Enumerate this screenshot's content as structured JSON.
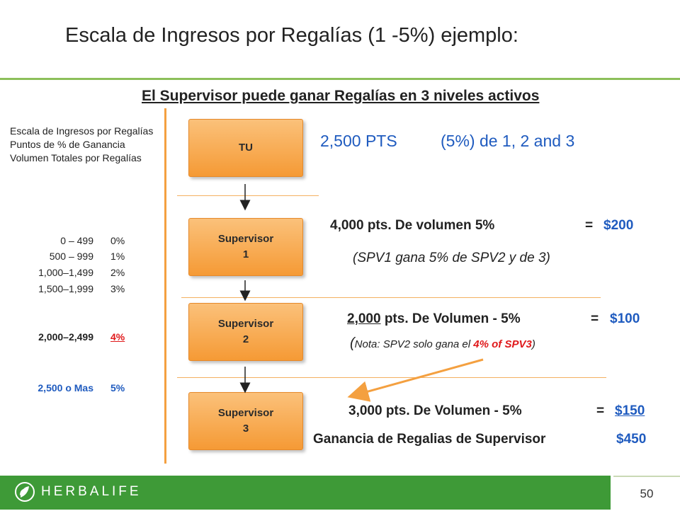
{
  "title": "Escala de Ingresos por Regalías  (1 -5%) ejemplo:",
  "subtitle": "El Supervisor puede ganar Regalías en 3 niveles activos",
  "scale": {
    "description": "Escala de Ingresos por Regalías Puntos de % de Ganancia Volumen Totales por Regalías",
    "tiers": [
      {
        "range": "0 –  499",
        "pct": "0%"
      },
      {
        "range": "500 –  999",
        "pct": "1%"
      },
      {
        "range": "1,000–1,499",
        "pct": "2%"
      },
      {
        "range": "1,500–1,999",
        "pct": "3%"
      },
      {
        "range": "2,000–2,499",
        "pct": "4%"
      },
      {
        "range": "2,500 o Mas",
        "pct": "5%"
      }
    ]
  },
  "levels": [
    {
      "line1": "TU",
      "line2": ""
    },
    {
      "line1": "Supervisor",
      "line2": "1"
    },
    {
      "line1": "Supervisor",
      "line2": "2"
    },
    {
      "line1": "Supervisor",
      "line2": "3"
    }
  ],
  "tu_info": {
    "points": "2,500 PTS",
    "pct_text": "(5%) de 1, 2 and 3"
  },
  "spv1": {
    "volume_text": "4,000 pts. De volumen  5%",
    "eq": "=",
    "amount": "$200",
    "note": "(SPV1 gana 5% de SPV2 y de 3)"
  },
  "spv2": {
    "points_num": "2,000",
    "volume_rest": " pts. De Volumen - 5%",
    "eq": "=",
    "amount": "$100",
    "note_open": "(",
    "note_a": "Nota:  SPV2 solo gana el ",
    "note_b": "4% of SPV3",
    "note_close": ")"
  },
  "spv3": {
    "volume_text": "3,000 pts. De Volumen - 5%",
    "eq": "=",
    "amount": "$150"
  },
  "total": {
    "label": "Ganancia de Regalias de Supervisor",
    "amount": "$450"
  },
  "footer": {
    "brand": "HERBALIFE",
    "page": "50"
  },
  "colors": {
    "accent_green": "#3e9a37",
    "box_orange": "#f59a35",
    "link_blue": "#1f5bbf",
    "note_red": "#e0191b"
  }
}
